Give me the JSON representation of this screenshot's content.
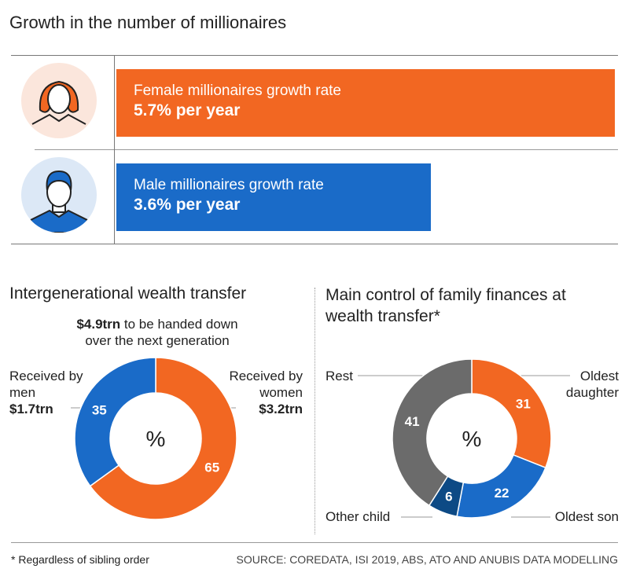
{
  "header": {
    "title": "Growth in the number of millionaires"
  },
  "growth": {
    "female": {
      "label": "Female millionaires growth rate",
      "value_text": "5.7% per year",
      "value": 5.7,
      "color": "#f26722",
      "avatar_bg": "#fbe6dc",
      "icon": "woman-avatar-icon"
    },
    "male": {
      "label": "Male millionaires growth rate",
      "value_text": "3.6% per year",
      "value": 3.6,
      "color": "#1a6bc8",
      "avatar_bg": "#dce8f6",
      "icon": "man-avatar-icon"
    }
  },
  "chart_data": [
    {
      "type": "pie",
      "title": "Intergenerational wealth transfer",
      "subtitle_bold": "$4.9trn",
      "subtitle_rest": " to be handed down",
      "subtitle_line2": "over the next generation",
      "center_label": "%",
      "slices": [
        {
          "name": "women",
          "value": 65,
          "color": "#f26722",
          "label_line1": "Received by",
          "label_line2": "women",
          "amount": "$3.2trn"
        },
        {
          "name": "men",
          "value": 35,
          "color": "#1a6bc8",
          "label_line1": "Received by",
          "label_line2": "men",
          "amount": "$1.7trn"
        }
      ]
    },
    {
      "type": "pie",
      "title_line1": "Main control of family finances at",
      "title_line2": "wealth transfer*",
      "center_label": "%",
      "slices": [
        {
          "name": "Oldest daughter",
          "value": 31,
          "color": "#f26722",
          "label_line1": "Oldest",
          "label_line2": "daughter"
        },
        {
          "name": "Oldest son",
          "value": 22,
          "color": "#1a6bc8",
          "label_line1": "Oldest son"
        },
        {
          "name": "Other child",
          "value": 6,
          "color": "#0d4a85",
          "label_line1": "Other child"
        },
        {
          "name": "Rest",
          "value": 41,
          "color": "#6b6b6b",
          "label_line1": "Rest"
        }
      ]
    }
  ],
  "footer": {
    "note": "* Regardless of sibling order",
    "source": "SOURCE: COREDATA, ISI 2019, ABS, ATO AND ANUBIS DATA MODELLING"
  }
}
